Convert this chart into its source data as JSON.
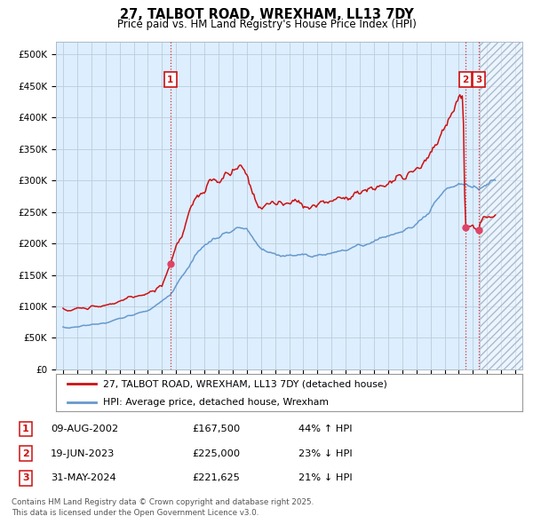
{
  "title": "27, TALBOT ROAD, WREXHAM, LL13 7DY",
  "subtitle": "Price paid vs. HM Land Registry's House Price Index (HPI)",
  "background_color": "#ffffff",
  "plot_bg_color": "#ddeeff",
  "grid_color": "#bbccdd",
  "ylim": [
    0,
    520000
  ],
  "ytick_vals": [
    0,
    50000,
    100000,
    150000,
    200000,
    250000,
    300000,
    350000,
    400000,
    450000,
    500000
  ],
  "ytick_labels": [
    "£0",
    "£50K",
    "£100K",
    "£150K",
    "£200K",
    "£250K",
    "£300K",
    "£350K",
    "£400K",
    "£450K",
    "£500K"
  ],
  "xlim_start": 1994.5,
  "xlim_end": 2027.5,
  "red_color": "#cc1111",
  "blue_color": "#6699cc",
  "vline_color": "#cc1111",
  "annotation_box_color": "#cc1111",
  "legend_label_red": "27, TALBOT ROAD, WREXHAM, LL13 7DY (detached house)",
  "legend_label_blue": "HPI: Average price, detached house, Wrexham",
  "sale1_date": "09-AUG-2002",
  "sale1_price": "£167,500",
  "sale1_hpi": "44% ↑ HPI",
  "sale1_year": 2002.6,
  "sale1_value": 167500,
  "sale2_date": "19-JUN-2023",
  "sale2_price": "£225,000",
  "sale2_hpi": "23% ↓ HPI",
  "sale2_year": 2023.46,
  "sale2_value": 225000,
  "sale3_date": "31-MAY-2024",
  "sale3_price": "£221,625",
  "sale3_hpi": "21% ↓ HPI",
  "sale3_year": 2024.41,
  "sale3_value": 221625,
  "footer": "Contains HM Land Registry data © Crown copyright and database right 2025.\nThis data is licensed under the Open Government Licence v3.0.",
  "hatch_start": 2024.5,
  "red_anchors": [
    [
      1995.0,
      95000
    ],
    [
      1995.5,
      93000
    ],
    [
      1996.0,
      97000
    ],
    [
      1997.0,
      98000
    ],
    [
      1998.0,
      101000
    ],
    [
      1998.5,
      105000
    ],
    [
      1999.0,
      108000
    ],
    [
      1999.5,
      112000
    ],
    [
      2000.0,
      115000
    ],
    [
      2000.5,
      118000
    ],
    [
      2001.0,
      120000
    ],
    [
      2001.5,
      125000
    ],
    [
      2002.0,
      135000
    ],
    [
      2002.6,
      167500
    ],
    [
      2003.0,
      195000
    ],
    [
      2003.5,
      220000
    ],
    [
      2004.0,
      255000
    ],
    [
      2004.5,
      275000
    ],
    [
      2005.0,
      285000
    ],
    [
      2005.5,
      295000
    ],
    [
      2006.0,
      300000
    ],
    [
      2006.5,
      305000
    ],
    [
      2007.0,
      315000
    ],
    [
      2007.5,
      320000
    ],
    [
      2008.0,
      310000
    ],
    [
      2008.5,
      275000
    ],
    [
      2009.0,
      258000
    ],
    [
      2009.5,
      262000
    ],
    [
      2010.0,
      265000
    ],
    [
      2010.5,
      260000
    ],
    [
      2011.0,
      265000
    ],
    [
      2011.5,
      267000
    ],
    [
      2012.0,
      262000
    ],
    [
      2012.5,
      258000
    ],
    [
      2013.0,
      262000
    ],
    [
      2013.5,
      265000
    ],
    [
      2014.0,
      268000
    ],
    [
      2014.5,
      272000
    ],
    [
      2015.0,
      275000
    ],
    [
      2015.5,
      278000
    ],
    [
      2016.0,
      280000
    ],
    [
      2016.5,
      284000
    ],
    [
      2017.0,
      288000
    ],
    [
      2017.5,
      292000
    ],
    [
      2018.0,
      295000
    ],
    [
      2018.5,
      300000
    ],
    [
      2019.0,
      305000
    ],
    [
      2019.5,
      310000
    ],
    [
      2020.0,
      315000
    ],
    [
      2020.5,
      325000
    ],
    [
      2021.0,
      340000
    ],
    [
      2021.5,
      360000
    ],
    [
      2022.0,
      385000
    ],
    [
      2022.5,
      410000
    ],
    [
      2023.0,
      425000
    ],
    [
      2023.3,
      430000
    ],
    [
      2023.46,
      225000
    ],
    [
      2023.8,
      225000
    ],
    [
      2024.0,
      226000
    ],
    [
      2024.41,
      221625
    ],
    [
      2024.5,
      235000
    ],
    [
      2025.0,
      240000
    ]
  ],
  "blue_anchors": [
    [
      1995.0,
      67000
    ],
    [
      1995.5,
      66000
    ],
    [
      1996.0,
      68000
    ],
    [
      1997.0,
      71000
    ],
    [
      1998.0,
      74000
    ],
    [
      1998.5,
      77000
    ],
    [
      1999.0,
      80000
    ],
    [
      1999.5,
      84000
    ],
    [
      2000.0,
      87000
    ],
    [
      2000.5,
      90000
    ],
    [
      2001.0,
      94000
    ],
    [
      2001.5,
      100000
    ],
    [
      2002.0,
      108000
    ],
    [
      2002.6,
      120000
    ],
    [
      2003.0,
      135000
    ],
    [
      2003.5,
      150000
    ],
    [
      2004.0,
      168000
    ],
    [
      2004.5,
      185000
    ],
    [
      2005.0,
      196000
    ],
    [
      2005.5,
      205000
    ],
    [
      2006.0,
      210000
    ],
    [
      2006.5,
      215000
    ],
    [
      2007.0,
      220000
    ],
    [
      2007.5,
      225000
    ],
    [
      2008.0,
      222000
    ],
    [
      2008.5,
      205000
    ],
    [
      2009.0,
      192000
    ],
    [
      2009.5,
      185000
    ],
    [
      2010.0,
      182000
    ],
    [
      2010.5,
      180000
    ],
    [
      2011.0,
      182000
    ],
    [
      2011.5,
      183000
    ],
    [
      2012.0,
      181000
    ],
    [
      2012.5,
      180000
    ],
    [
      2013.0,
      181000
    ],
    [
      2013.5,
      183000
    ],
    [
      2014.0,
      185000
    ],
    [
      2014.5,
      188000
    ],
    [
      2015.0,
      190000
    ],
    [
      2015.5,
      193000
    ],
    [
      2016.0,
      196000
    ],
    [
      2016.5,
      200000
    ],
    [
      2017.0,
      204000
    ],
    [
      2017.5,
      208000
    ],
    [
      2018.0,
      212000
    ],
    [
      2018.5,
      216000
    ],
    [
      2019.0,
      220000
    ],
    [
      2019.5,
      224000
    ],
    [
      2020.0,
      228000
    ],
    [
      2020.5,
      238000
    ],
    [
      2021.0,
      252000
    ],
    [
      2021.5,
      268000
    ],
    [
      2022.0,
      282000
    ],
    [
      2022.5,
      292000
    ],
    [
      2023.0,
      295000
    ],
    [
      2023.46,
      292000
    ],
    [
      2023.8,
      290000
    ],
    [
      2024.0,
      291000
    ],
    [
      2024.41,
      285000
    ],
    [
      2024.5,
      288000
    ],
    [
      2025.0,
      295000
    ]
  ]
}
